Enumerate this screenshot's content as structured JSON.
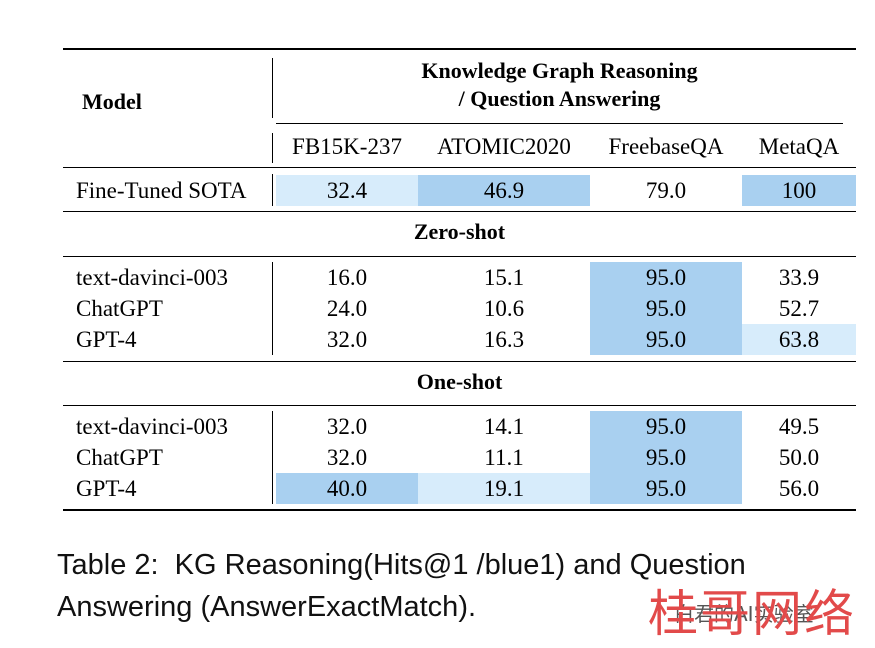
{
  "table": {
    "model_header": "Model",
    "group_header_line1": "Knowledge Graph Reasoning",
    "group_header_line2": "/ Question Answering",
    "columns": [
      "FB15K-237",
      "ATOMIC2020",
      "FreebaseQA",
      "MetaQA"
    ],
    "highlight_colors": {
      "dark": "#a9d0f0",
      "light": "#d7ecfb"
    },
    "sota": {
      "model": "Fine-Tuned SOTA",
      "values": [
        "32.4",
        "46.9",
        "79.0",
        "100"
      ],
      "highlight": [
        "light",
        "dark",
        "none",
        "dark"
      ]
    },
    "sections": [
      {
        "title": "Zero-shot",
        "rows": [
          {
            "model": "text-davinci-003",
            "values": [
              "16.0",
              "15.1",
              "95.0",
              "33.9"
            ],
            "highlight": [
              "none",
              "none",
              "dark",
              "none"
            ]
          },
          {
            "model": "ChatGPT",
            "values": [
              "24.0",
              "10.6",
              "95.0",
              "52.7"
            ],
            "highlight": [
              "none",
              "none",
              "dark",
              "none"
            ]
          },
          {
            "model": "GPT-4",
            "values": [
              "32.0",
              "16.3",
              "95.0",
              "63.8"
            ],
            "highlight": [
              "none",
              "none",
              "dark",
              "light"
            ]
          }
        ]
      },
      {
        "title": "One-shot",
        "rows": [
          {
            "model": "text-davinci-003",
            "values": [
              "32.0",
              "14.1",
              "95.0",
              "49.5"
            ],
            "highlight": [
              "none",
              "none",
              "dark",
              "none"
            ]
          },
          {
            "model": "ChatGPT",
            "values": [
              "32.0",
              "11.1",
              "95.0",
              "50.0"
            ],
            "highlight": [
              "none",
              "none",
              "dark",
              "none"
            ]
          },
          {
            "model": "GPT-4",
            "values": [
              "40.0",
              "19.1",
              "95.0",
              "56.0"
            ],
            "highlight": [
              "dark",
              "light",
              "dark",
              "none"
            ]
          }
        ]
      }
    ]
  },
  "caption": {
    "line1": "Table 2:  KG Reasoning(Hits@1 /blue1) and Question",
    "line2": "Answering (AnswerExactMatch)."
  },
  "watermark": {
    "big_text": "桂哥网络",
    "small_text": "白君的AI实验室"
  }
}
